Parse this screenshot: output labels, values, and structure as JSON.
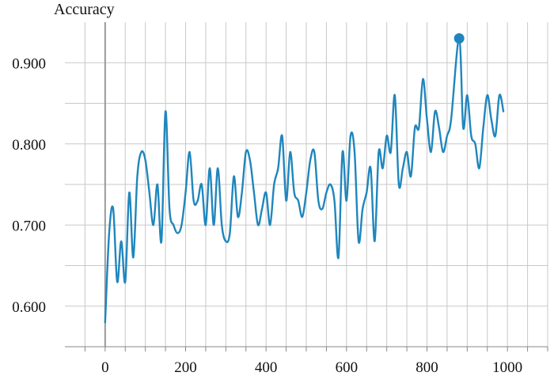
{
  "chart_data": {
    "type": "line",
    "title": "Accuracy",
    "xlabel": "",
    "ylabel": "",
    "xlim": [
      -100,
      1100
    ],
    "ylim": [
      0.55,
      0.95
    ],
    "grid": true,
    "legend": "none",
    "x_ticks": [
      0,
      200,
      400,
      600,
      800,
      1000
    ],
    "x_tick_labels": [
      "0",
      "200",
      "400",
      "600",
      "800",
      "1000"
    ],
    "y_ticks": [
      0.6,
      0.7,
      0.8,
      0.9
    ],
    "y_tick_labels": [
      "0.600",
      "0.700",
      "0.800",
      "0.900"
    ],
    "colors": {
      "line": "#1f86bd",
      "grid": "#c8c8c8",
      "zero_line": "#999999",
      "axis": "#888888"
    },
    "highlight_point": {
      "x": 880,
      "y": 0.93
    },
    "series": [
      {
        "values": [
          [
            0,
            0.58
          ],
          [
            10,
            0.69
          ],
          [
            20,
            0.72
          ],
          [
            30,
            0.63
          ],
          [
            40,
            0.68
          ],
          [
            50,
            0.63
          ],
          [
            60,
            0.74
          ],
          [
            70,
            0.66
          ],
          [
            80,
            0.76
          ],
          [
            90,
            0.79
          ],
          [
            100,
            0.78
          ],
          [
            110,
            0.74
          ],
          [
            120,
            0.7
          ],
          [
            130,
            0.75
          ],
          [
            140,
            0.68
          ],
          [
            150,
            0.84
          ],
          [
            160,
            0.72
          ],
          [
            170,
            0.7
          ],
          [
            180,
            0.69
          ],
          [
            190,
            0.7
          ],
          [
            200,
            0.74
          ],
          [
            210,
            0.79
          ],
          [
            220,
            0.73
          ],
          [
            230,
            0.73
          ],
          [
            240,
            0.75
          ],
          [
            250,
            0.7
          ],
          [
            260,
            0.77
          ],
          [
            270,
            0.7
          ],
          [
            280,
            0.77
          ],
          [
            290,
            0.7
          ],
          [
            300,
            0.68
          ],
          [
            310,
            0.69
          ],
          [
            320,
            0.76
          ],
          [
            330,
            0.71
          ],
          [
            340,
            0.74
          ],
          [
            350,
            0.79
          ],
          [
            360,
            0.78
          ],
          [
            370,
            0.74
          ],
          [
            380,
            0.7
          ],
          [
            390,
            0.72
          ],
          [
            400,
            0.74
          ],
          [
            410,
            0.7
          ],
          [
            420,
            0.75
          ],
          [
            430,
            0.77
          ],
          [
            440,
            0.81
          ],
          [
            450,
            0.73
          ],
          [
            460,
            0.79
          ],
          [
            470,
            0.74
          ],
          [
            480,
            0.73
          ],
          [
            490,
            0.71
          ],
          [
            500,
            0.74
          ],
          [
            510,
            0.78
          ],
          [
            520,
            0.79
          ],
          [
            530,
            0.73
          ],
          [
            540,
            0.72
          ],
          [
            550,
            0.74
          ],
          [
            560,
            0.75
          ],
          [
            570,
            0.73
          ],
          [
            580,
            0.66
          ],
          [
            590,
            0.79
          ],
          [
            600,
            0.73
          ],
          [
            610,
            0.81
          ],
          [
            620,
            0.79
          ],
          [
            630,
            0.68
          ],
          [
            640,
            0.72
          ],
          [
            650,
            0.74
          ],
          [
            660,
            0.77
          ],
          [
            670,
            0.68
          ],
          [
            680,
            0.79
          ],
          [
            690,
            0.77
          ],
          [
            700,
            0.81
          ],
          [
            710,
            0.79
          ],
          [
            720,
            0.86
          ],
          [
            730,
            0.75
          ],
          [
            740,
            0.77
          ],
          [
            750,
            0.79
          ],
          [
            760,
            0.76
          ],
          [
            770,
            0.82
          ],
          [
            780,
            0.82
          ],
          [
            790,
            0.88
          ],
          [
            800,
            0.83
          ],
          [
            810,
            0.79
          ],
          [
            820,
            0.84
          ],
          [
            830,
            0.82
          ],
          [
            840,
            0.79
          ],
          [
            850,
            0.81
          ],
          [
            860,
            0.83
          ],
          [
            880,
            0.93
          ],
          [
            890,
            0.82
          ],
          [
            900,
            0.86
          ],
          [
            910,
            0.81
          ],
          [
            920,
            0.8
          ],
          [
            930,
            0.77
          ],
          [
            940,
            0.82
          ],
          [
            950,
            0.86
          ],
          [
            960,
            0.83
          ],
          [
            970,
            0.81
          ],
          [
            980,
            0.86
          ],
          [
            990,
            0.84
          ]
        ]
      }
    ]
  }
}
